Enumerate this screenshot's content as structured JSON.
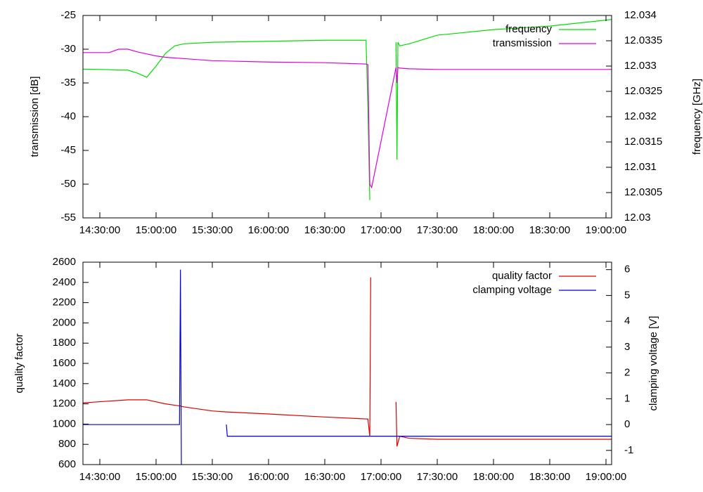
{
  "chart_data": [
    {
      "type": "line",
      "ylabel": "transmission [dB]",
      "y2label": "frequency [GHz]",
      "x": [
        "14:21:00",
        "14:35:00",
        "14:40:00",
        "14:45:00",
        "14:50:00",
        "14:55:00",
        "15:00:00",
        "15:05:00",
        "15:10:00",
        "15:15:00",
        "15:30:00",
        "16:00:00",
        "16:30:00",
        "16:52:00",
        "16:53:00",
        "16:54:00",
        "16:55:00",
        "17:08:00",
        "17:08:30",
        "17:09:00",
        "17:10:00",
        "17:15:00",
        "17:30:00",
        "18:00:00",
        "18:30:00",
        "19:03:00"
      ],
      "series": [
        {
          "name": "frequency",
          "color": "#00e000",
          "axis": "y2",
          "values": [
            12.03294,
            12.03293,
            12.03292,
            12.03292,
            12.03286,
            12.03278,
            12.033,
            12.03325,
            12.0334,
            12.03344,
            12.03347,
            12.03349,
            12.03351,
            12.03351,
            12.0322,
            12.03035,
            null,
            12.03347,
            12.03115,
            12.03347,
            12.0334,
            12.03344,
            12.03361,
            12.03372,
            12.03379,
            12.03392
          ]
        },
        {
          "name": "transmission",
          "color": "#e000e0",
          "axis": "y",
          "values": [
            -30.5,
            -30.5,
            -30.0,
            -30.0,
            -30.4,
            -30.7,
            -31.0,
            -31.2,
            -31.3,
            -31.4,
            -31.7,
            -31.9,
            -32.0,
            -32.2,
            -32.3,
            -50.0,
            -50.5,
            -32.7,
            -35.0,
            -32.7,
            -32.8,
            -32.9,
            -33.0,
            -33.0,
            -33.0,
            -33.0
          ]
        }
      ],
      "xlim": [
        "14:21:00",
        "19:03:00"
      ],
      "xticks": [
        "14:30:00",
        "15:00:00",
        "15:30:00",
        "16:00:00",
        "16:30:00",
        "17:00:00",
        "17:30:00",
        "18:00:00",
        "18:30:00",
        "19:00:00"
      ],
      "ylim": [
        -55,
        -25
      ],
      "yticks": [
        -55,
        -50,
        -45,
        -40,
        -35,
        -30,
        -25
      ],
      "y2lim": [
        12.03,
        12.034
      ],
      "y2ticks": [
        12.03,
        12.0305,
        12.031,
        12.0315,
        12.032,
        12.0325,
        12.033,
        12.0335,
        12.034
      ],
      "legend": "upper right"
    },
    {
      "type": "line",
      "ylabel": "quality factor",
      "y2label": "clamping voltage [V]",
      "x": [
        "14:21:00",
        "14:45:00",
        "14:55:00",
        "15:05:00",
        "15:12:30",
        "15:13:00",
        "15:13:30",
        "15:15:00",
        "15:30:00",
        "15:37:30",
        "15:38:00",
        "16:00:00",
        "16:30:00",
        "16:53:00",
        "16:54:00",
        "16:54:30",
        "17:00:00",
        "17:08:00",
        "17:08:30",
        "17:10:00",
        "17:15:00",
        "17:30:00",
        "18:00:00",
        "18:30:00",
        "19:03:00"
      ],
      "series": [
        {
          "name": "quality factor",
          "color": "#e00000",
          "axis": "y",
          "values": [
            1210,
            1240,
            1240,
            1200,
            1180,
            1180,
            1175,
            1170,
            1130,
            1120,
            1120,
            1100,
            1070,
            1050,
            880,
            2450,
            null,
            1220,
            780,
            880,
            860,
            850,
            850,
            850,
            850
          ]
        },
        {
          "name": "clamping voltage",
          "color": "#0000e0",
          "axis": "y2",
          "values": [
            0,
            0,
            0,
            0,
            0,
            6.0,
            -1.6,
            null,
            null,
            0,
            -0.45,
            -0.45,
            -0.45,
            -0.45,
            -0.45,
            -0.45,
            -0.45,
            -0.45,
            -0.45,
            -0.45,
            -0.45,
            -0.45,
            -0.45,
            -0.45,
            -0.45
          ]
        }
      ],
      "xlim": [
        "14:21:00",
        "19:03:00"
      ],
      "xticks": [
        "14:30:00",
        "15:00:00",
        "15:30:00",
        "16:00:00",
        "16:30:00",
        "17:00:00",
        "17:30:00",
        "18:00:00",
        "18:30:00",
        "19:00:00"
      ],
      "ylim": [
        600,
        2600
      ],
      "yticks": [
        600,
        800,
        1000,
        1200,
        1400,
        1600,
        1800,
        2000,
        2200,
        2400,
        2600
      ],
      "y2lim": [
        -1.55,
        6.29
      ],
      "y2ticks": [
        -1,
        0,
        1,
        2,
        3,
        4,
        5,
        6
      ],
      "legend": "upper right"
    }
  ]
}
